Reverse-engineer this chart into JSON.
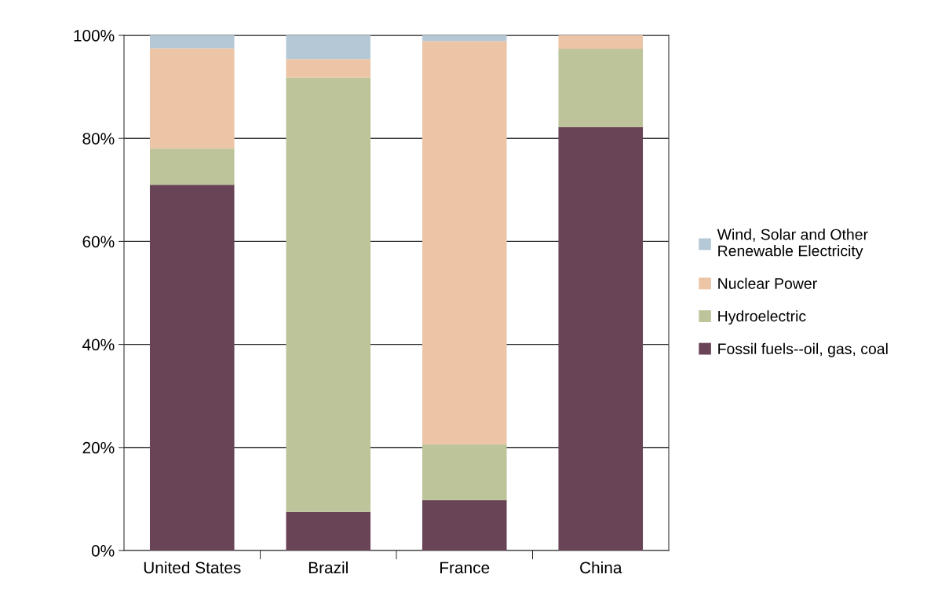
{
  "chart_data": {
    "type": "bar",
    "stacked": true,
    "categories": [
      "United States",
      "Brazil",
      "France",
      "China"
    ],
    "series": [
      {
        "name": "Fossil fuels--oil, gas, coal",
        "color": "#684456",
        "values": [
          71,
          7.5,
          9.8,
          82.2
        ]
      },
      {
        "name": "Hydroelectric",
        "color": "#bdc49a",
        "values": [
          7,
          84.3,
          10.8,
          15.2
        ]
      },
      {
        "name": "Nuclear Power",
        "color": "#ecc4a6",
        "values": [
          19.5,
          3.6,
          78.3,
          2.6
        ]
      },
      {
        "name": "Wind, Solar and Other\nRenewable Electricity",
        "color": "#b5c8d6",
        "values": [
          2.5,
          4.6,
          1.1,
          0
        ]
      }
    ],
    "ylim": [
      0,
      100
    ],
    "yticks": [
      {
        "value": 0,
        "label": "0%"
      },
      {
        "value": 20,
        "label": "20%"
      },
      {
        "value": 40,
        "label": "40%"
      },
      {
        "value": 60,
        "label": "60%"
      },
      {
        "value": 80,
        "label": "80%"
      },
      {
        "value": 100,
        "label": "100%"
      }
    ],
    "grid": "y",
    "legend": "right"
  }
}
